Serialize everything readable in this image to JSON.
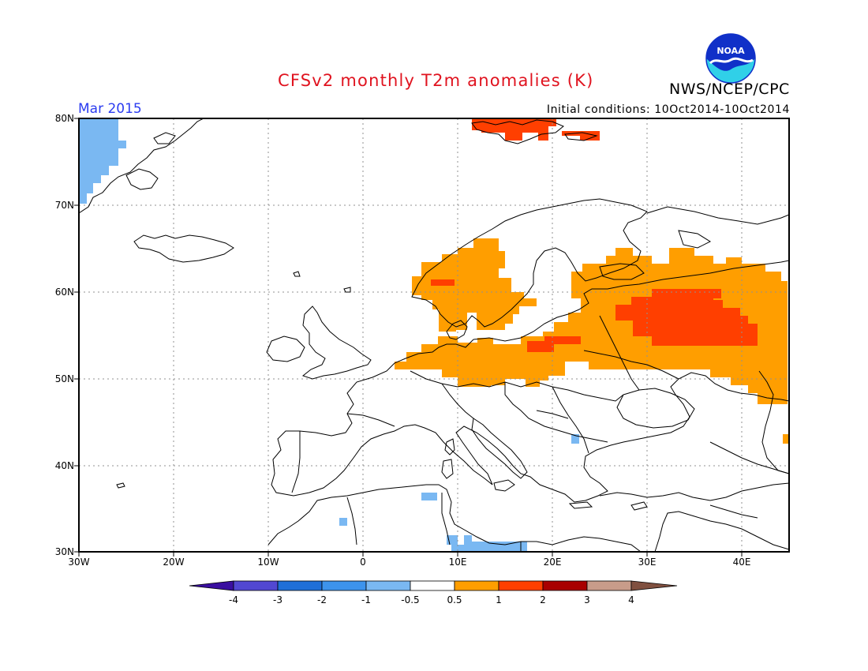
{
  "header": {
    "title": "CFSv2 monthly T2m anomalies (K)",
    "org": "NWS/NCEP/CPC",
    "logo_text": "NOAA",
    "period": "Mar 2015",
    "initial_conditions": "Initial conditions: 10Oct2014-10Oct2014"
  },
  "axes": {
    "lat_labels": [
      "80N",
      "70N",
      "60N",
      "50N",
      "40N",
      "30N"
    ],
    "lon_labels": [
      "30W",
      "20W",
      "10W",
      "0",
      "10E",
      "20E",
      "30E",
      "40E"
    ]
  },
  "colorbar": {
    "labels": [
      "-4",
      "-3",
      "-2",
      "-1",
      "-0.5",
      "0.5",
      "1",
      "2",
      "3",
      "4"
    ],
    "colors": [
      "#3a0fa0",
      "#5248d2",
      "#1f6fd8",
      "#3d93ec",
      "#7ab8f2",
      "#ffffff",
      "#ff9e00",
      "#ff3f00",
      "#a80000",
      "#c89c8a",
      "#805040"
    ]
  },
  "map": {
    "extent": {
      "lon": [
        -30,
        45
      ],
      "lat": [
        30,
        80
      ]
    },
    "colors": {
      "coast": "#000000",
      "grid": "#909090",
      "pos1": "#ff9e00",
      "pos2": "#ff3f00",
      "neg1": "#7ab8f2"
    }
  }
}
